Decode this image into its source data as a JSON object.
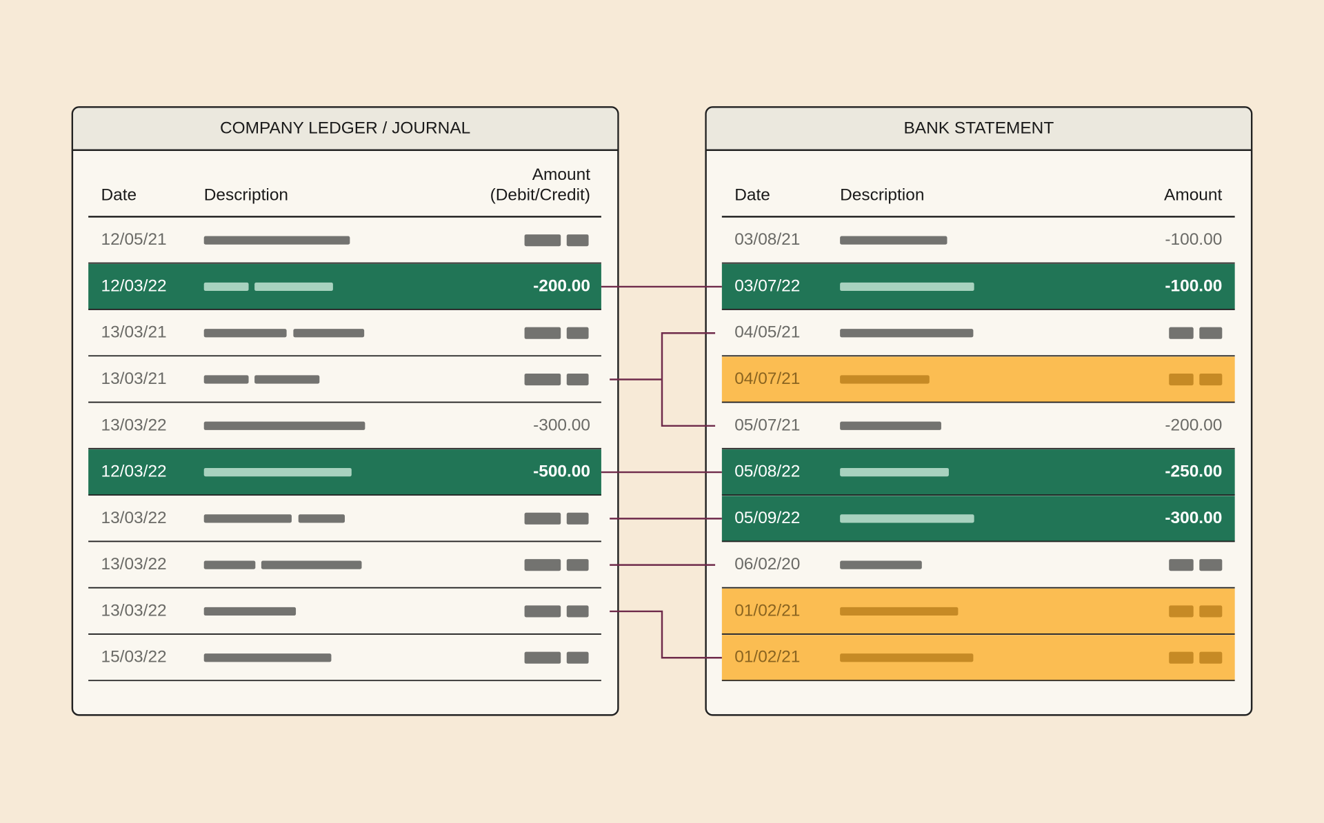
{
  "ledger": {
    "title": "COMPANY LEDGER / JOURNAL",
    "headers": {
      "date": "Date",
      "description": "Description",
      "amount": [
        "Amount",
        "(Debit/Credit)"
      ]
    },
    "rows": [
      {
        "date": "12/05/21"
      },
      {
        "date": "12/03/22",
        "amount": "-200.00",
        "highlight": "green"
      },
      {
        "date": "13/03/21"
      },
      {
        "date": "13/03/21"
      },
      {
        "date": "13/03/22",
        "amount": "-300.00"
      },
      {
        "date": "12/03/22",
        "amount": "-500.00",
        "highlight": "green"
      },
      {
        "date": "13/03/22"
      },
      {
        "date": "13/03/22"
      },
      {
        "date": "13/03/22"
      },
      {
        "date": "15/03/22"
      }
    ]
  },
  "bank": {
    "title": "BANK STATEMENT",
    "headers": {
      "date": "Date",
      "description": "Description",
      "amount": [
        "Amount"
      ]
    },
    "rows": [
      {
        "date": "03/08/21",
        "amount": "-100.00"
      },
      {
        "date": "03/07/22",
        "amount": "-100.00",
        "highlight": "green"
      },
      {
        "date": "04/05/21"
      },
      {
        "date": "04/07/21",
        "highlight": "amber"
      },
      {
        "date": "05/07/21",
        "amount": "-200.00"
      },
      {
        "date": "05/08/22",
        "amount": "-250.00",
        "highlight": "green"
      },
      {
        "date": "05/09/22",
        "amount": "-300.00",
        "highlight": "green"
      },
      {
        "date": "06/02/20"
      },
      {
        "date": "01/02/21",
        "highlight": "amber"
      },
      {
        "date": "01/02/21",
        "highlight": "amber"
      }
    ]
  }
}
